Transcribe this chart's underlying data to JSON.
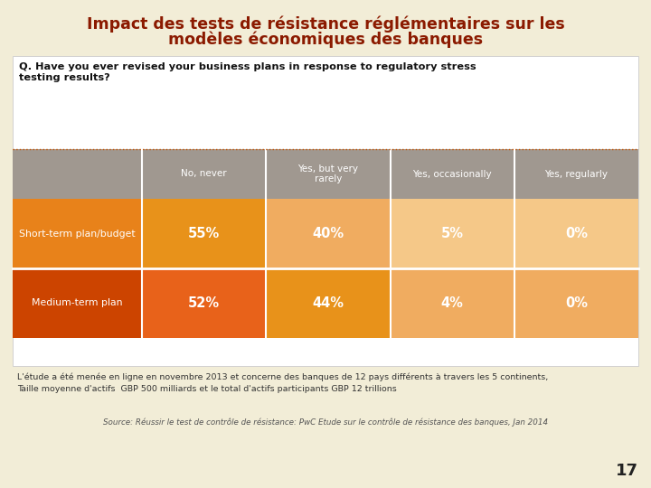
{
  "title_line1": "Impact des tests de résistance réglémentaires sur les",
  "title_line2": "modèles économiques des banques",
  "title_color": "#8B1A00",
  "bg_color": "#F2EDD7",
  "question": "Q. Have you ever revised your business plans in response to regulatory stress\ntesting results?",
  "col_headers": [
    "No, never",
    "Yes, but very\nrarely",
    "Yes, occasionally",
    "Yes, regularly"
  ],
  "row_labels": [
    "Short-term plan/budget",
    "Medium-term plan"
  ],
  "data": [
    [
      "55%",
      "40%",
      "5%",
      "0%"
    ],
    [
      "52%",
      "44%",
      "4%",
      "0%"
    ]
  ],
  "header_bg": "#A09890",
  "row1_label_bg": "#E8821A",
  "row2_label_bg": "#CC4400",
  "row1_cell_colors": [
    "#E8921A",
    "#F0AC60",
    "#F5C888",
    "#F5C888"
  ],
  "row2_cell_colors": [
    "#E8621A",
    "#E8921A",
    "#F0AC60",
    "#F0AC60"
  ],
  "header_text_color": "#FFFFFF",
  "cell_text_color": "#FFFFFF",
  "label_text_color": "#FFFFFF",
  "white_box_bg": "#FFFFFF",
  "footnote1": "L'étude a été menée en ligne en novembre 2013 et concerne des banques de 12 pays différents à travers les 5 continents,",
  "footnote2": "Taille moyenne d'actifs  GBP 500 milliards et le total d'actifs participants GBP 12 trillions",
  "source": "Source: Réussir le test de contrôle de résistance: PwC Etude sur le contrôle de résistance des banques, Jan 2014",
  "page_num": "17",
  "border_color": "#CC5500"
}
